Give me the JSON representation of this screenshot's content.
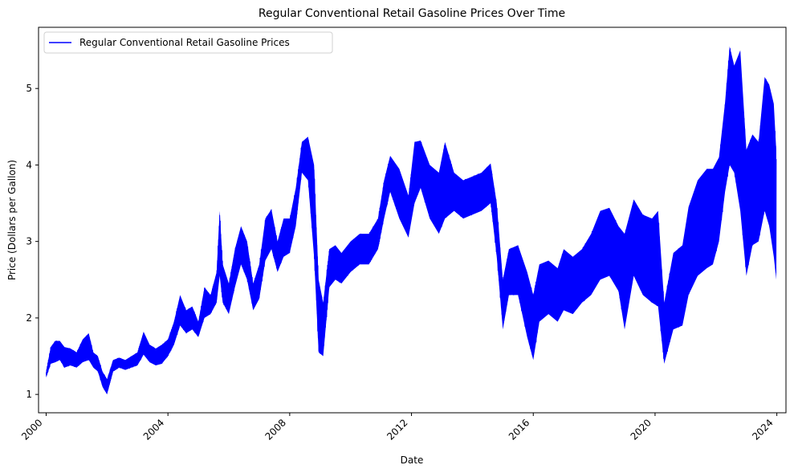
{
  "chart_data": {
    "type": "line",
    "title": "Regular Conventional Retail Gasoline Prices Over Time",
    "xlabel": "Date",
    "ylabel": "Price (Dollars per Gallon)",
    "x_ticks": [
      "2000",
      "2004",
      "2008",
      "2012",
      "2016",
      "2020",
      "2024"
    ],
    "y_ticks": [
      "1",
      "2",
      "3",
      "4",
      "5"
    ],
    "xlim": [
      1999.75,
      2024.3
    ],
    "ylim": [
      0.76,
      5.8
    ],
    "grid": false,
    "legend_position": "upper-left",
    "series": [
      {
        "name": "Regular Conventional Retail Gasoline Prices",
        "color": "#0000ff",
        "x": [
          2000.0,
          2000.15,
          2000.3,
          2000.45,
          2000.6,
          2000.8,
          2001.0,
          2001.2,
          2001.4,
          2001.55,
          2001.7,
          2001.85,
          2002.0,
          2002.2,
          2002.4,
          2002.6,
          2002.8,
          2003.0,
          2003.2,
          2003.4,
          2003.6,
          2003.8,
          2004.0,
          2004.2,
          2004.4,
          2004.6,
          2004.8,
          2005.0,
          2005.2,
          2005.4,
          2005.6,
          2005.7,
          2005.8,
          2006.0,
          2006.2,
          2006.4,
          2006.6,
          2006.8,
          2007.0,
          2007.2,
          2007.4,
          2007.6,
          2007.8,
          2008.0,
          2008.2,
          2008.4,
          2008.6,
          2008.8,
          2008.95,
          2009.1,
          2009.3,
          2009.5,
          2009.7,
          2010.0,
          2010.3,
          2010.6,
          2010.9,
          2011.1,
          2011.3,
          2011.6,
          2011.9,
          2012.1,
          2012.3,
          2012.6,
          2012.9,
          2013.1,
          2013.4,
          2013.7,
          2014.0,
          2014.3,
          2014.6,
          2014.8,
          2015.0,
          2015.2,
          2015.5,
          2015.8,
          2016.0,
          2016.2,
          2016.5,
          2016.8,
          2017.0,
          2017.3,
          2017.6,
          2017.9,
          2018.2,
          2018.5,
          2018.8,
          2019.0,
          2019.3,
          2019.6,
          2019.9,
          2020.1,
          2020.3,
          2020.6,
          2020.9,
          2021.1,
          2021.4,
          2021.7,
          2021.9,
          2022.1,
          2022.3,
          2022.45,
          2022.6,
          2022.8,
          2023.0,
          2023.2,
          2023.4,
          2023.6,
          2023.75,
          2023.9,
          2023.98
        ],
        "high": [
          1.3,
          1.62,
          1.7,
          1.7,
          1.62,
          1.6,
          1.55,
          1.72,
          1.8,
          1.55,
          1.5,
          1.3,
          1.2,
          1.45,
          1.48,
          1.45,
          1.5,
          1.55,
          1.82,
          1.65,
          1.6,
          1.65,
          1.72,
          1.95,
          2.3,
          2.1,
          2.15,
          1.95,
          2.4,
          2.3,
          2.6,
          3.4,
          2.7,
          2.45,
          2.9,
          3.2,
          3.0,
          2.45,
          2.7,
          3.3,
          3.42,
          3.0,
          3.3,
          3.3,
          3.7,
          4.3,
          4.37,
          4.0,
          2.5,
          2.2,
          2.9,
          2.95,
          2.85,
          3.0,
          3.1,
          3.1,
          3.3,
          3.8,
          4.12,
          3.95,
          3.6,
          4.3,
          4.32,
          4.0,
          3.9,
          4.3,
          3.9,
          3.8,
          3.85,
          3.9,
          4.02,
          3.5,
          2.5,
          2.9,
          2.95,
          2.6,
          2.3,
          2.7,
          2.75,
          2.65,
          2.9,
          2.8,
          2.9,
          3.1,
          3.4,
          3.44,
          3.2,
          3.1,
          3.55,
          3.35,
          3.3,
          3.4,
          2.2,
          2.85,
          2.95,
          3.45,
          3.8,
          3.95,
          3.95,
          4.1,
          4.82,
          5.55,
          5.3,
          5.5,
          4.2,
          4.4,
          4.3,
          5.15,
          5.05,
          4.8,
          4.2
        ],
        "low": [
          1.22,
          1.4,
          1.42,
          1.45,
          1.35,
          1.38,
          1.35,
          1.42,
          1.45,
          1.35,
          1.3,
          1.1,
          1.0,
          1.3,
          1.35,
          1.32,
          1.35,
          1.38,
          1.52,
          1.42,
          1.38,
          1.4,
          1.5,
          1.65,
          1.9,
          1.8,
          1.85,
          1.75,
          2.0,
          2.05,
          2.2,
          2.55,
          2.2,
          2.05,
          2.4,
          2.7,
          2.5,
          2.1,
          2.25,
          2.75,
          2.9,
          2.6,
          2.8,
          2.85,
          3.2,
          3.9,
          3.8,
          2.8,
          1.55,
          1.5,
          2.4,
          2.5,
          2.45,
          2.6,
          2.7,
          2.7,
          2.9,
          3.3,
          3.65,
          3.3,
          3.05,
          3.5,
          3.7,
          3.3,
          3.1,
          3.3,
          3.4,
          3.3,
          3.35,
          3.4,
          3.5,
          2.8,
          1.85,
          2.3,
          2.3,
          1.75,
          1.45,
          1.95,
          2.05,
          1.95,
          2.1,
          2.05,
          2.2,
          2.3,
          2.5,
          2.55,
          2.35,
          1.85,
          2.55,
          2.3,
          2.2,
          2.15,
          1.4,
          1.85,
          1.9,
          2.3,
          2.55,
          2.65,
          2.7,
          3.0,
          3.65,
          4.0,
          3.9,
          3.4,
          2.55,
          2.95,
          3.0,
          3.4,
          3.2,
          2.8,
          2.5
        ]
      }
    ]
  }
}
